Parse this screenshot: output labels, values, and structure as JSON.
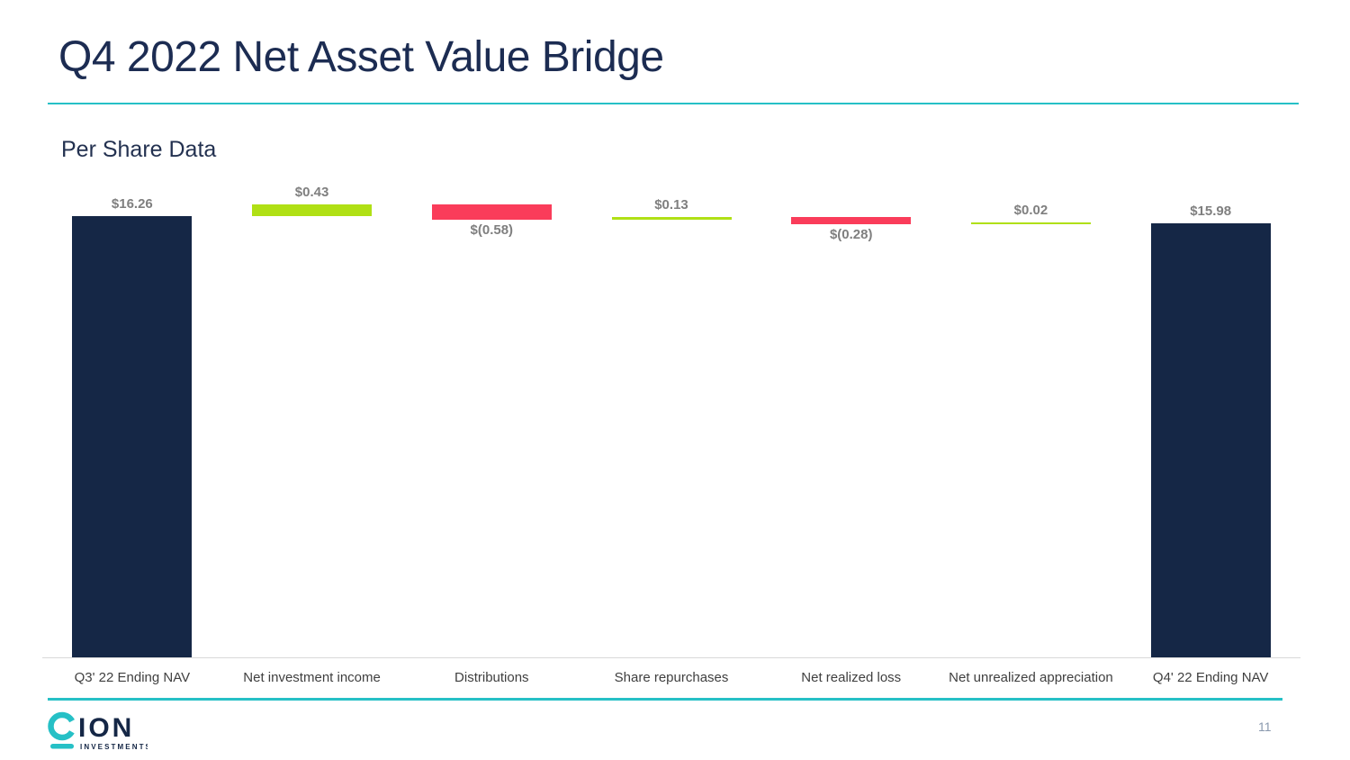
{
  "header": {
    "title": "Q4 2022 Net Asset Value Bridge"
  },
  "footer": {
    "logo_ion": "ION",
    "logo_text": "CION",
    "logo_sub": "INVESTMENTS",
    "page_number": "11"
  },
  "colors": {
    "navy_total": "#152746",
    "increase_green": "#B0E015",
    "decrease_red": "#FA3C5A",
    "teal_accent": "#26C0C6",
    "data_label_gray": "#7F7F7F",
    "axis_label_gray": "#3F3F3F",
    "axis_line_gray": "#D9D9D9"
  },
  "chart_data": {
    "type": "bar",
    "subtype": "waterfall-bridge",
    "title": "Per Share Data",
    "unit": "$ per share",
    "grid": false,
    "legend": "none",
    "ylim": [
      0,
      16.69
    ],
    "baseline": 0,
    "categories": [
      "Q3' 22 Ending NAV",
      "Net investment income",
      "Distributions",
      "Share repurchases",
      "Net realized loss",
      "Net unrealized appreciation",
      "Q4' 22 Ending NAV"
    ],
    "series": [
      {
        "label": "Q3' 22 Ending NAV",
        "value": 16.26,
        "display": "$16.26",
        "kind": "total"
      },
      {
        "label": "Net investment income",
        "value": 0.43,
        "display": "$0.43",
        "kind": "increase"
      },
      {
        "label": "Distributions",
        "value": -0.58,
        "display": "$(0.58)",
        "kind": "decrease"
      },
      {
        "label": "Share repurchases",
        "value": 0.13,
        "display": "$0.13",
        "kind": "increase"
      },
      {
        "label": "Net realized loss",
        "value": -0.28,
        "display": "$(0.28)",
        "kind": "decrease"
      },
      {
        "label": "Net unrealized appreciation",
        "value": 0.02,
        "display": "$0.02",
        "kind": "increase"
      },
      {
        "label": "Q4' 22 Ending NAV",
        "value": 15.98,
        "display": "$15.98",
        "kind": "total"
      }
    ],
    "cumulative_check": [
      16.26,
      16.69,
      16.11,
      16.24,
      15.96,
      15.98,
      15.98
    ]
  }
}
